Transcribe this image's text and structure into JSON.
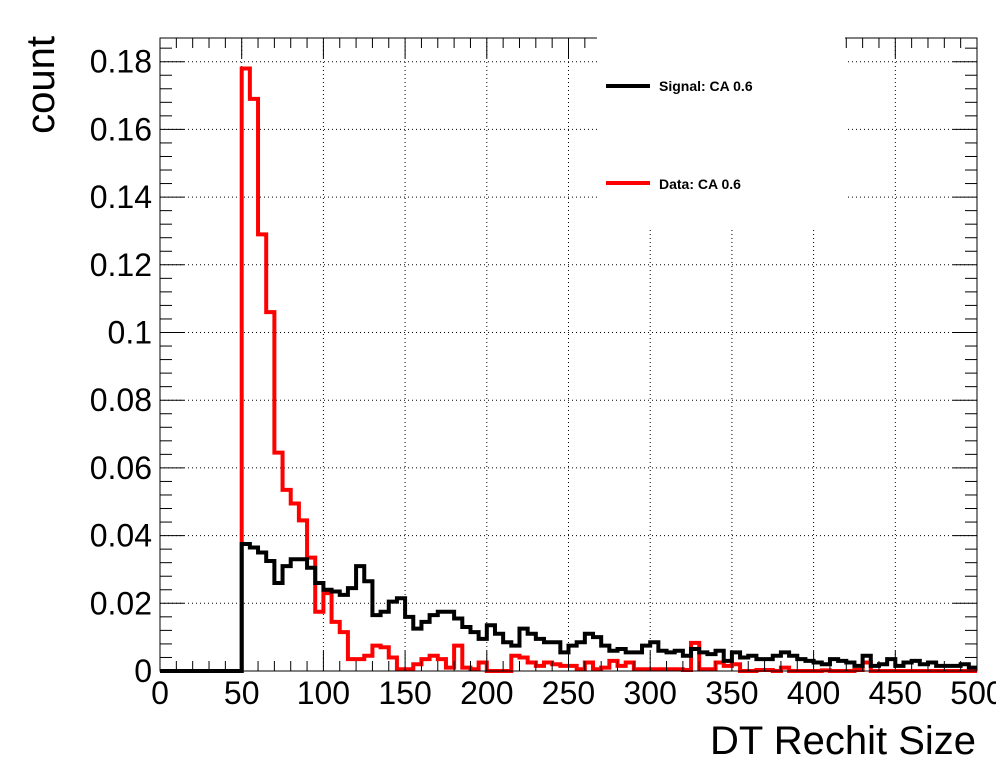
{
  "chart_data": {
    "type": "histogram",
    "xlabel": "DT Rechit Size",
    "ylabel": "count",
    "xlim": [
      0,
      500
    ],
    "ylim": [
      0,
      0.187
    ],
    "bin_width": 5,
    "grid": true,
    "legend_position": "top-right",
    "xticks": [
      "0",
      "50",
      "100",
      "150",
      "200",
      "250",
      "300",
      "350",
      "400",
      "450",
      "500"
    ],
    "yticks": [
      "0",
      "0.02",
      "0.04",
      "0.06",
      "0.08",
      "0.1",
      "0.12",
      "0.14",
      "0.16",
      "0.18"
    ],
    "series": [
      {
        "name": "Signal: CA 0.6",
        "color": "#000000",
        "values": [
          0,
          0,
          0,
          0,
          0,
          0,
          0,
          0,
          0,
          0,
          0.0375,
          0.0365,
          0.035,
          0.0325,
          0.026,
          0.031,
          0.033,
          0.033,
          0.0305,
          0.026,
          0.024,
          0.0235,
          0.0225,
          0.0245,
          0.031,
          0.0265,
          0.0165,
          0.0175,
          0.0205,
          0.0215,
          0.016,
          0.0125,
          0.0145,
          0.0165,
          0.0175,
          0.0175,
          0.0155,
          0.013,
          0.0115,
          0.0095,
          0.0135,
          0.011,
          0.0085,
          0.0075,
          0.0125,
          0.011,
          0.0095,
          0.0085,
          0.0085,
          0.0055,
          0.0075,
          0.0085,
          0.011,
          0.01,
          0.0075,
          0.006,
          0.0065,
          0.0055,
          0.0055,
          0.0075,
          0.0085,
          0.006,
          0.0055,
          0.006,
          0.0045,
          0.0065,
          0.0055,
          0.005,
          0.006,
          0.003,
          0.0055,
          0.004,
          0.0045,
          0.0035,
          0.0035,
          0.0045,
          0.0055,
          0.0045,
          0.0035,
          0.003,
          0.0025,
          0.002,
          0.0035,
          0.003,
          0.0025,
          0.0015,
          0.0045,
          0.0015,
          0.002,
          0.0035,
          0.0015,
          0.0025,
          0.003,
          0.002,
          0.0025,
          0.0015,
          0.0015,
          0.0015,
          0.002,
          0.001
        ]
      },
      {
        "name": "Data: CA 0.6",
        "color": "#ff0000",
        "values": [
          0,
          0,
          0,
          0,
          0,
          0,
          0,
          0,
          0,
          0,
          0.178,
          0.169,
          0.129,
          0.106,
          0.0645,
          0.0535,
          0.0495,
          0.0445,
          0.0335,
          0.0175,
          0.023,
          0.0145,
          0.0115,
          0.0035,
          0.0035,
          0.0045,
          0.0075,
          0.007,
          0.004,
          0.0005,
          0.0005,
          0.002,
          0.0035,
          0.0045,
          0.0035,
          0.001,
          0.0075,
          0.001,
          0.0005,
          0.0025,
          0,
          0,
          0,
          0.0045,
          0.004,
          0.0025,
          0.0015,
          0.0025,
          0.002,
          0.0015,
          0.0015,
          0.0005,
          0.0025,
          0.0005,
          0.001,
          0.003,
          0.0015,
          0.0025,
          0.0005,
          0.0005,
          0.0005,
          0.0005,
          0.0005,
          0.0005,
          0.0003,
          0.0083,
          0.0005,
          0.0005,
          0.0025,
          0.0015,
          0.002,
          0,
          0,
          0.0003,
          0.0003,
          0,
          0.001,
          0,
          0,
          0,
          0,
          0.0002,
          0,
          0,
          0,
          0.0003,
          0.0025,
          0,
          0,
          0,
          0,
          0,
          0,
          0,
          0,
          0,
          0,
          0,
          0,
          0
        ]
      }
    ]
  }
}
